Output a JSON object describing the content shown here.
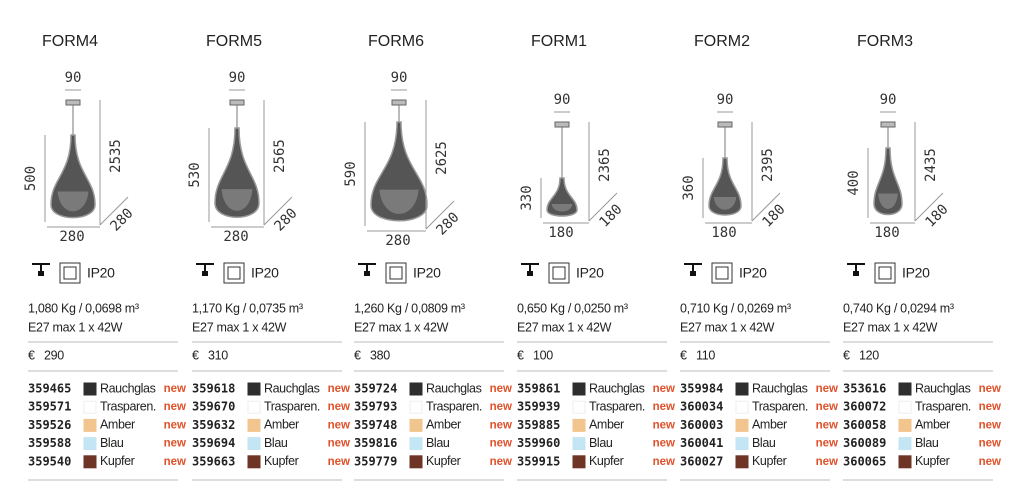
{
  "products": [
    {
      "name": "FORM4",
      "dims": {
        "width": "90",
        "height": "500",
        "total": "2535",
        "diameter": "280",
        "depth": "280"
      },
      "ip": "IP20",
      "weight": "1,080 Kg / 0,0698 m³",
      "socket": "E27 max 1 x 42W",
      "currency": "€",
      "price": "290",
      "variants": [
        {
          "code": "359465",
          "color": "Rauchglas",
          "tag": "new",
          "swatch": "#2e2e2e"
        },
        {
          "code": "359571",
          "color": "Trasparen.",
          "tag": "new",
          "swatch": "#ffffff"
        },
        {
          "code": "359526",
          "color": "Amber",
          "tag": "new",
          "swatch": "#f2c48e"
        },
        {
          "code": "359588",
          "color": "Blau",
          "tag": "new",
          "swatch": "#c4e6f4"
        },
        {
          "code": "359540",
          "color": "Kupfer",
          "tag": "new",
          "swatch": "#6e3526"
        }
      ]
    },
    {
      "name": "FORM5",
      "dims": {
        "width": "90",
        "height": "530",
        "total": "2565",
        "diameter": "280",
        "depth": "280"
      },
      "ip": "IP20",
      "weight": "1,170 Kg / 0,0735 m³",
      "socket": "E27 max 1 x 42W",
      "currency": "€",
      "price": "310",
      "variants": [
        {
          "code": "359618",
          "color": "Rauchglas",
          "tag": "new",
          "swatch": "#2e2e2e"
        },
        {
          "code": "359670",
          "color": "Trasparen.",
          "tag": "new",
          "swatch": "#ffffff"
        },
        {
          "code": "359632",
          "color": "Amber",
          "tag": "new",
          "swatch": "#f2c48e"
        },
        {
          "code": "359694",
          "color": "Blau",
          "tag": "new",
          "swatch": "#c4e6f4"
        },
        {
          "code": "359663",
          "color": "Kupfer",
          "tag": "new",
          "swatch": "#6e3526"
        }
      ]
    },
    {
      "name": "FORM6",
      "dims": {
        "width": "90",
        "height": "590",
        "total": "2625",
        "diameter": "280",
        "depth": "280"
      },
      "ip": "IP20",
      "weight": "1,260 Kg / 0,0809 m³",
      "socket": "E27 max 1 x 42W",
      "currency": "€",
      "price": "380",
      "variants": [
        {
          "code": "359724",
          "color": "Rauchglas",
          "tag": "new",
          "swatch": "#2e2e2e"
        },
        {
          "code": "359793",
          "color": "Trasparen.",
          "tag": "new",
          "swatch": "#ffffff"
        },
        {
          "code": "359748",
          "color": "Amber",
          "tag": "new",
          "swatch": "#f2c48e"
        },
        {
          "code": "359816",
          "color": "Blau",
          "tag": "new",
          "swatch": "#c4e6f4"
        },
        {
          "code": "359779",
          "color": "Kupfer",
          "tag": "new",
          "swatch": "#6e3526"
        }
      ]
    },
    {
      "name": "FORM1",
      "dims": {
        "width": "90",
        "height": "330",
        "total": "2365",
        "diameter": "180",
        "depth": "180"
      },
      "ip": "IP20",
      "weight": "0,650 Kg / 0,0250 m³",
      "socket": "E27 max 1 x 42W",
      "currency": "€",
      "price": "100",
      "variants": [
        {
          "code": "359861",
          "color": "Rauchglas",
          "tag": "new",
          "swatch": "#2e2e2e"
        },
        {
          "code": "359939",
          "color": "Trasparen.",
          "tag": "new",
          "swatch": "#ffffff"
        },
        {
          "code": "359885",
          "color": "Amber",
          "tag": "new",
          "swatch": "#f2c48e"
        },
        {
          "code": "359960",
          "color": "Blau",
          "tag": "new",
          "swatch": "#c4e6f4"
        },
        {
          "code": "359915",
          "color": "Kupfer",
          "tag": "new",
          "swatch": "#6e3526"
        }
      ]
    },
    {
      "name": "FORM2",
      "dims": {
        "width": "90",
        "height": "360",
        "total": "2395",
        "diameter": "180",
        "depth": "180"
      },
      "ip": "IP20",
      "weight": "0,710 Kg / 0,0269 m³",
      "socket": "E27 max 1 x 42W",
      "currency": "€",
      "price": "110",
      "variants": [
        {
          "code": "359984",
          "color": "Rauchglas",
          "tag": "new",
          "swatch": "#2e2e2e"
        },
        {
          "code": "360034",
          "color": "Trasparen.",
          "tag": "new",
          "swatch": "#ffffff"
        },
        {
          "code": "360003",
          "color": "Amber",
          "tag": "new",
          "swatch": "#f2c48e"
        },
        {
          "code": "360041",
          "color": "Blau",
          "tag": "new",
          "swatch": "#c4e6f4"
        },
        {
          "code": "360027",
          "color": "Kupfer",
          "tag": "new",
          "swatch": "#6e3526"
        }
      ]
    },
    {
      "name": "FORM3",
      "dims": {
        "width": "90",
        "height": "400",
        "total": "2435",
        "diameter": "180",
        "depth": "180"
      },
      "ip": "IP20",
      "weight": "0,740 Kg / 0,0294 m³",
      "socket": "E27 max 1 x 42W",
      "currency": "€",
      "price": "120",
      "variants": [
        {
          "code": "353616",
          "color": "Rauchglas",
          "tag": "new",
          "swatch": "#2e2e2e"
        },
        {
          "code": "360072",
          "color": "Trasparen.",
          "tag": "new",
          "swatch": "#ffffff"
        },
        {
          "code": "360058",
          "color": "Amber",
          "tag": "new",
          "swatch": "#f2c48e"
        },
        {
          "code": "360089",
          "color": "Blau",
          "tag": "new",
          "swatch": "#c4e6f4"
        },
        {
          "code": "360065",
          "color": "Kupfer",
          "tag": "new",
          "swatch": "#6e3526"
        }
      ]
    }
  ]
}
